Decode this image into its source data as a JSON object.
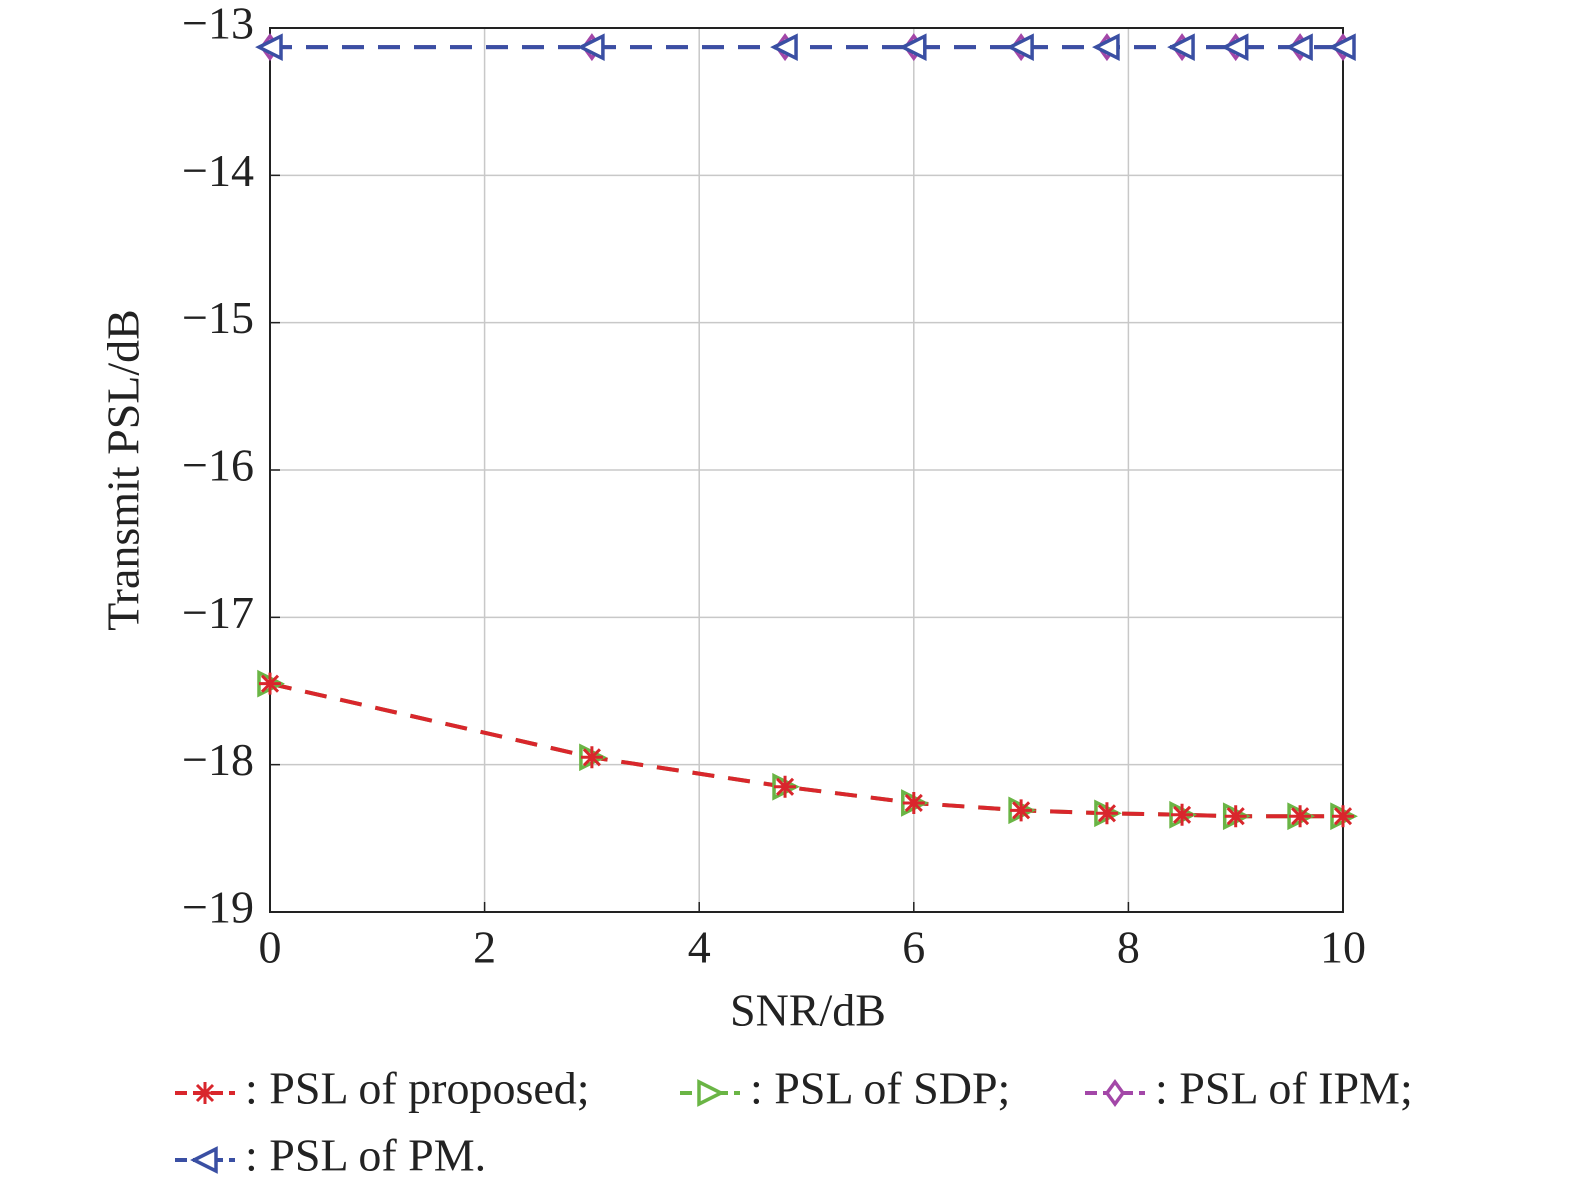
{
  "chart_data": {
    "type": "line",
    "xlabel": "SNR/dB",
    "ylabel": "Transmit PSL/dB",
    "x": [
      0,
      3,
      4.8,
      6,
      7,
      7.8,
      8.5,
      9,
      9.6,
      10
    ],
    "series": [
      {
        "name": ": PSL of proposed;",
        "color": "#d9262c",
        "marker": "star",
        "values": [
          -17.45,
          -17.95,
          -18.15,
          -18.26,
          -18.31,
          -18.33,
          -18.34,
          -18.35,
          -18.35,
          -18.35
        ]
      },
      {
        "name": ": PSL of SDP;",
        "color": "#6ab545",
        "marker": "triangle-right",
        "values": [
          -17.45,
          -17.95,
          -18.15,
          -18.26,
          -18.31,
          -18.33,
          -18.34,
          -18.35,
          -18.35,
          -18.35
        ]
      },
      {
        "name": ": PSL of IPM;",
        "color": "#a347a8",
        "marker": "diamond",
        "values": [
          -13.13,
          -13.13,
          -13.13,
          -13.13,
          -13.13,
          -13.13,
          -13.13,
          -13.13,
          -13.13,
          -13.13
        ]
      },
      {
        "name": ": PSL of PM.",
        "color": "#3a4fa3",
        "marker": "triangle-left",
        "values": [
          -13.13,
          -13.13,
          -13.13,
          -13.13,
          -13.13,
          -13.13,
          -13.13,
          -13.13,
          -13.13,
          -13.13
        ]
      }
    ],
    "xlim": [
      0,
      10
    ],
    "xticks": [
      0,
      2,
      4,
      6,
      8,
      10
    ],
    "ylim": [
      -19,
      -13
    ],
    "yticks": [
      {
        "value": -19,
        "label": "−19"
      },
      {
        "value": -18,
        "label": "−18"
      },
      {
        "value": -17,
        "label": "−17"
      },
      {
        "value": -16,
        "label": "−16"
      },
      {
        "value": -15,
        "label": "−15"
      },
      {
        "value": -14,
        "label": "−14"
      },
      {
        "value": -13,
        "label": "−13"
      }
    ],
    "grid": true,
    "line_style": "dashed",
    "legend": "bottom"
  }
}
